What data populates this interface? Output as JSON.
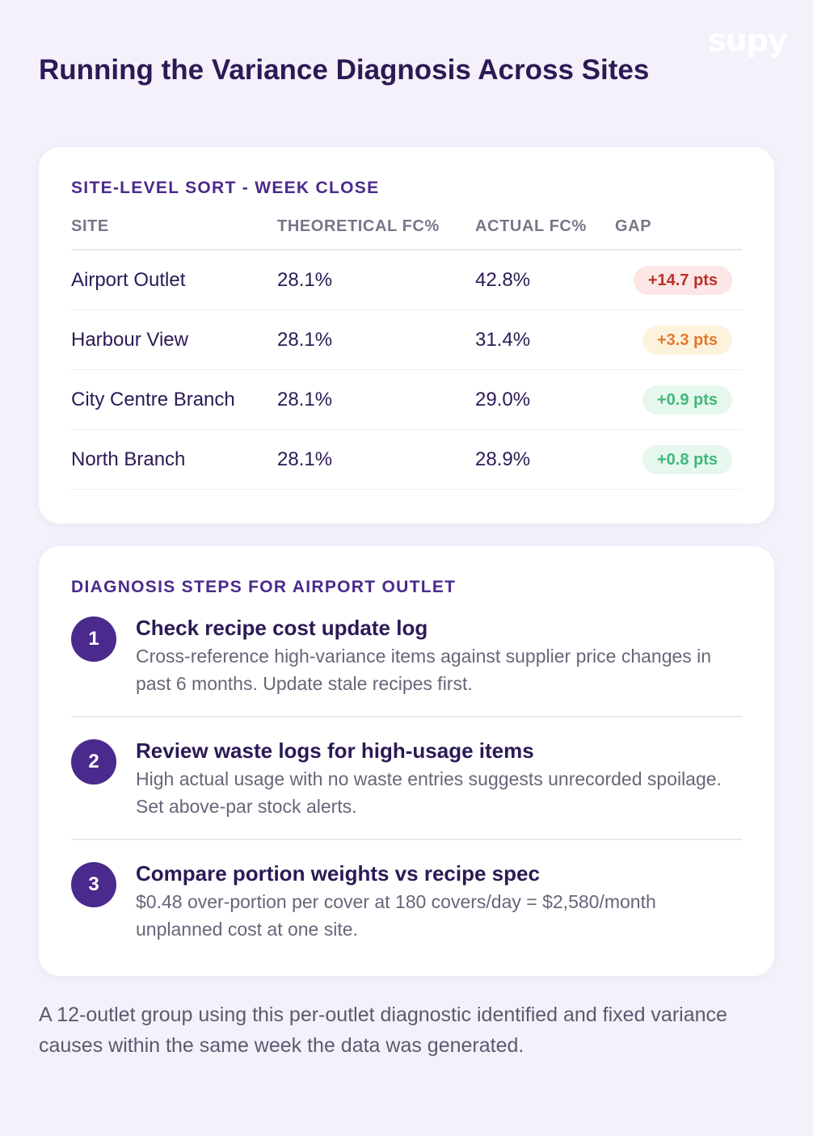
{
  "brand": {
    "logo_text": "supy"
  },
  "page": {
    "title": "Running the Variance Diagnosis Across Sites"
  },
  "sites_card": {
    "heading": "SITE-LEVEL SORT - WEEK CLOSE",
    "columns": [
      "SITE",
      "THEORETICAL FC%",
      "ACTUAL FC%",
      "GAP"
    ],
    "rows": [
      {
        "site": "Airport Outlet",
        "theoretical": "28.1%",
        "actual": "42.8%",
        "gap": "+14.7 pts",
        "severity": "high"
      },
      {
        "site": "Harbour View",
        "theoretical": "28.1%",
        "actual": "31.4%",
        "gap": "+3.3 pts",
        "severity": "medium"
      },
      {
        "site": "City Centre Branch",
        "theoretical": "28.1%",
        "actual": "29.0%",
        "gap": "+0.9 pts",
        "severity": "low"
      },
      {
        "site": "North Branch",
        "theoretical": "28.1%",
        "actual": "28.9%",
        "gap": "+0.8 pts",
        "severity": "low"
      }
    ],
    "severity_colors": {
      "high": "#b8322a",
      "medium": "#e07a2a",
      "low": "#3fb87a"
    }
  },
  "steps_card": {
    "heading": "DIAGNOSIS STEPS FOR AIRPORT OUTLET",
    "steps": [
      {
        "number": "1",
        "title": "Check recipe cost update log",
        "description": "Cross-reference high-variance items against supplier price changes in past 6 months. Update stale recipes first."
      },
      {
        "number": "2",
        "title": "Review waste logs for high-usage items",
        "description": "High actual usage with no waste entries suggests unrecorded spoilage. Set above-par stock alerts."
      },
      {
        "number": "3",
        "title": "Compare portion weights vs recipe spec",
        "description": "$0.48 over-portion per cover at 180 covers/day = $2,580/month unplanned cost at one site."
      }
    ]
  },
  "footer": {
    "text": "A 12-outlet group using this per-outlet diagnostic identified and fixed variance causes within the same week the data was generated."
  },
  "colors": {
    "accent": "#4a2a8c",
    "background": "#f4f1fa"
  }
}
